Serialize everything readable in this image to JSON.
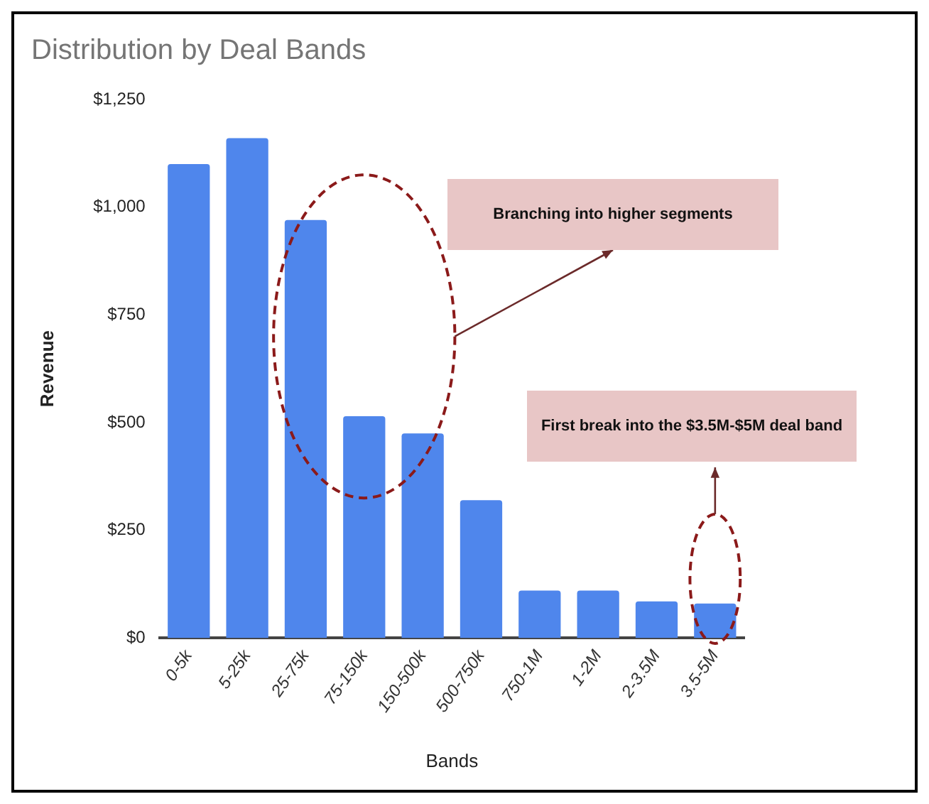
{
  "chart_data": {
    "type": "bar",
    "title": "Distribution by Deal Bands",
    "xlabel": "Bands",
    "ylabel": "Revenue",
    "categories": [
      "0-5k",
      "5-25k",
      "25-75k",
      "75-150k",
      "150-500k",
      "500-750k",
      "750-1M",
      "1-2M",
      "2-3.5M",
      "3.5-5M"
    ],
    "values": [
      1100,
      1160,
      970,
      515,
      475,
      320,
      110,
      110,
      85,
      80
    ],
    "color": "#4f86ec",
    "ylim": [
      0,
      1250
    ],
    "yticks": [
      {
        "value": 0,
        "label": "$0"
      },
      {
        "value": 250,
        "label": "$250"
      },
      {
        "value": 500,
        "label": "$500"
      },
      {
        "value": 750,
        "label": "$750"
      },
      {
        "value": 1000,
        "label": "$1,000"
      },
      {
        "value": 1250,
        "label": "$1,250"
      }
    ],
    "grid": false,
    "legend": false,
    "annotations": [
      "Branching into higher segments",
      "First break into the $3.5M-$5M deal band"
    ]
  }
}
